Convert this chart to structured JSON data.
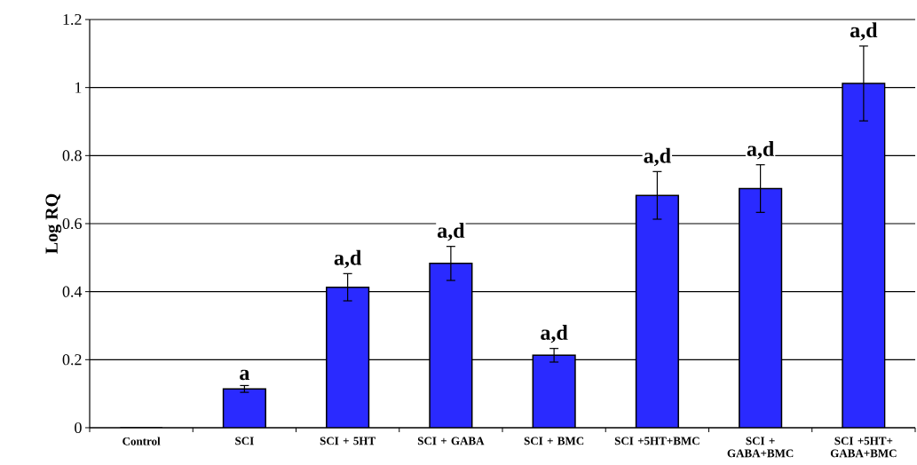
{
  "chart_data": {
    "type": "bar",
    "ylabel": "Log RQ",
    "categories": [
      "Control",
      "SCI",
      "SCI + 5HT",
      "SCI + GABA",
      "SCI + BMC",
      "SCI +5HT+BMC",
      "SCI + GABA+BMC",
      "SCI +5HT+ GABA+BMC"
    ],
    "values": [
      0,
      0.114,
      0.413,
      0.483,
      0.213,
      0.683,
      0.703,
      1.012
    ],
    "errors": [
      null,
      0.01,
      0.04,
      0.05,
      0.02,
      0.07,
      0.07,
      0.11
    ],
    "color": "#2a2aff",
    "ylim": [
      0,
      1.2
    ],
    "yticks": [
      0,
      0.2,
      0.4,
      0.6,
      0.8,
      1,
      1.2
    ],
    "grid": "y",
    "annotations": [
      {
        "text": "a",
        "x": "SCI",
        "y": 0.124
      },
      {
        "text": "a,d",
        "x": "SCI + 5HT",
        "y": 0.453
      },
      {
        "text": "a,d",
        "x": "SCI + GABA",
        "y": 0.533
      },
      {
        "text": "a,d",
        "x": "SCI + BMC",
        "y": 0.233
      },
      {
        "text": "a,d",
        "x": "SCI +5HT+BMC",
        "y": 0.753
      },
      {
        "text": "a,d",
        "x": "SCI + GABA+BMC",
        "y": 0.773
      },
      {
        "text": "a,d",
        "x": "SCI +5HT+ GABA+BMC",
        "y": 1.122
      }
    ]
  }
}
